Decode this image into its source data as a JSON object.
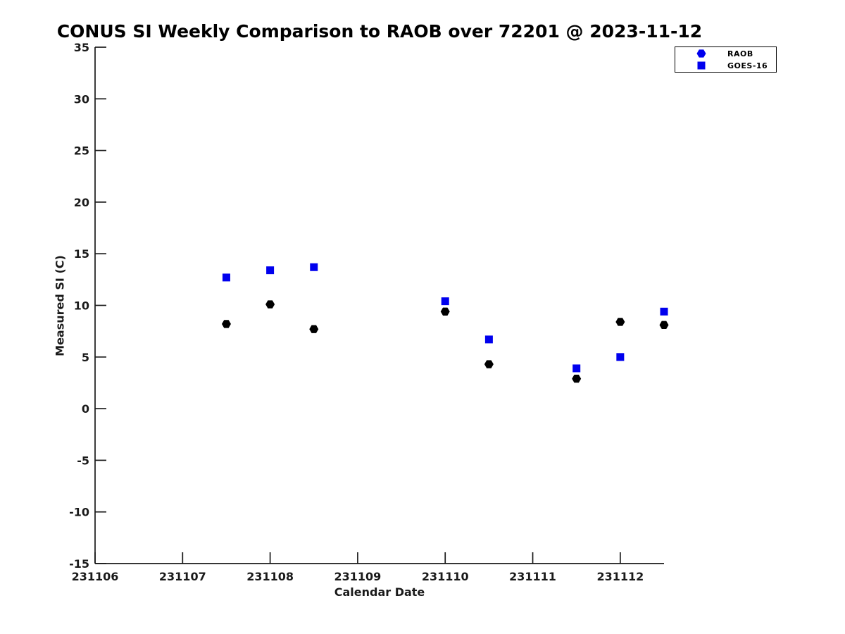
{
  "title": "CONUS SI Weekly Comparison to RAOB over 72201 @ 2023-11-12",
  "colors": {
    "series_blue": "#0000ee",
    "raob_plot_marker": "#000000",
    "axis": "#1a1a1a",
    "background": "#ffffff"
  },
  "legend": {
    "position": "top-right-outside",
    "entries": [
      {
        "label": "RAOB",
        "marker": "hexagon",
        "color": "#0000ee"
      },
      {
        "label": "GOES-16",
        "marker": "square",
        "color": "#0000ee"
      }
    ]
  },
  "chart_data": {
    "type": "scatter",
    "title": "CONUS SI Weekly Comparison to RAOB over 72201 @ 2023-11-12",
    "xlabel": "Calendar Date",
    "ylabel": "Measured SI (C)",
    "xlim": [
      231106,
      231112.5
    ],
    "ylim": [
      -15,
      35
    ],
    "x_ticks": [
      231106,
      231107,
      231108,
      231109,
      231110,
      231111,
      231112
    ],
    "y_ticks": [
      -15,
      -10,
      -5,
      0,
      5,
      10,
      15,
      20,
      25,
      30,
      35
    ],
    "grid": false,
    "legend_position": "top-right",
    "x": [
      231107.5,
      231108.0,
      231108.5,
      231110.0,
      231110.5,
      231111.5,
      231112.0,
      231112.5
    ],
    "series": [
      {
        "name": "RAOB",
        "marker": "hexagon",
        "plot_color": "#000000",
        "legend_color": "#0000ee",
        "values": [
          8.2,
          10.1,
          7.7,
          9.4,
          4.3,
          2.9,
          8.4,
          8.1
        ]
      },
      {
        "name": "GOES-16",
        "marker": "square",
        "plot_color": "#0000ee",
        "legend_color": "#0000ee",
        "values": [
          12.7,
          13.4,
          13.7,
          10.4,
          6.7,
          3.9,
          5.0,
          9.4
        ]
      }
    ]
  }
}
